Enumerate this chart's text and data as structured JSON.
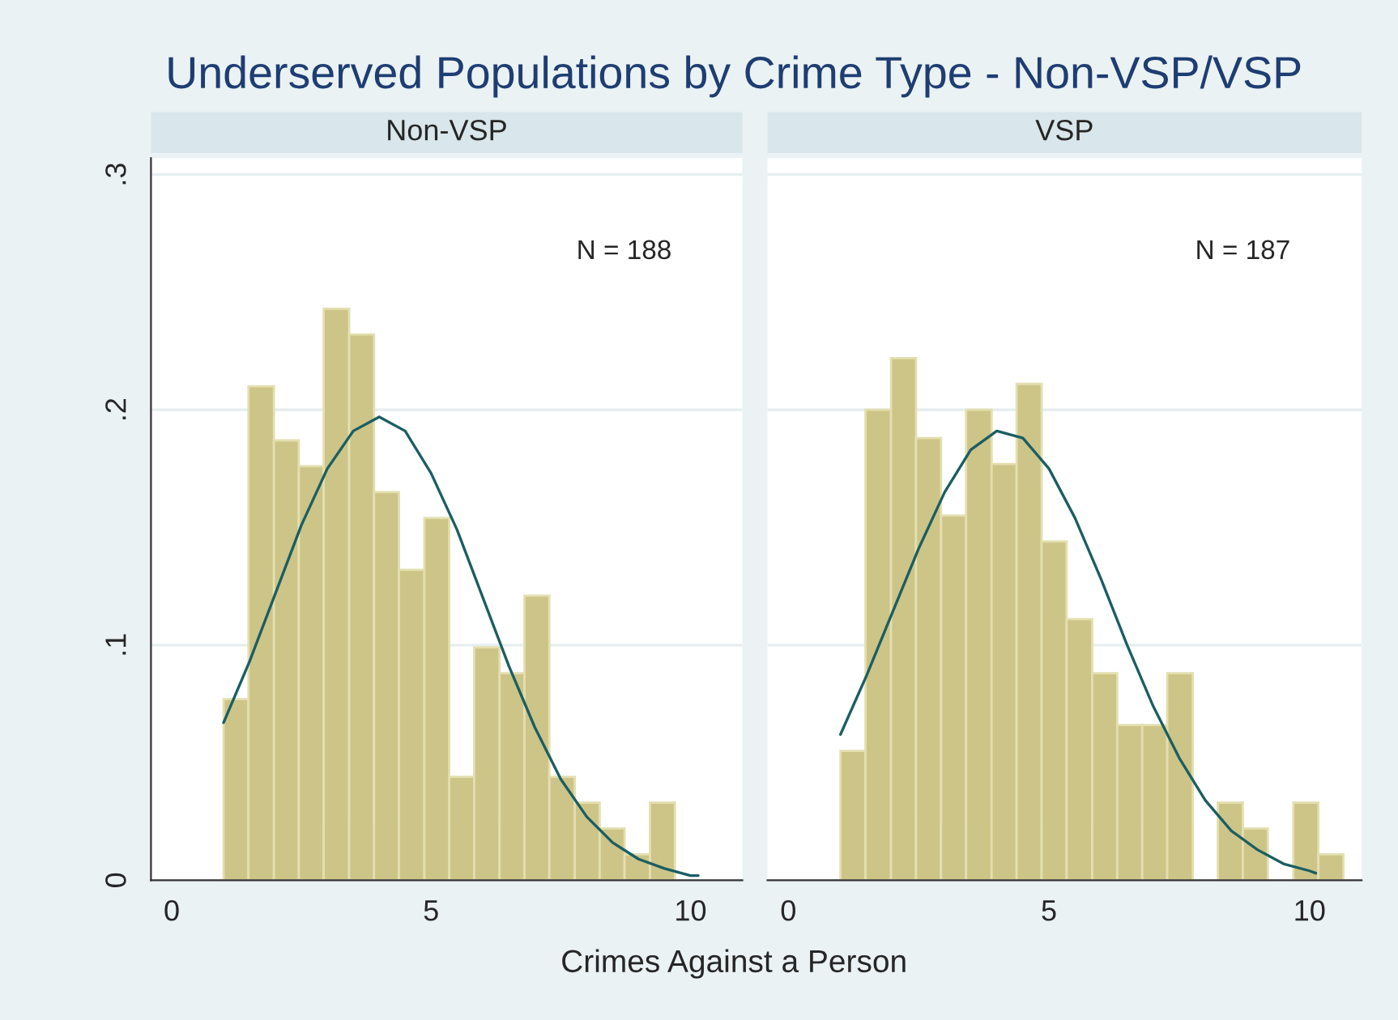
{
  "chart_data": [
    {
      "type": "histogram",
      "title": "Underserved Populations by Crime Type - Non-VSP/VSP",
      "subtitle": "Non-VSP",
      "xlabel": "Crimes Against a Person",
      "annotations": [
        "N = 188"
      ],
      "series": [
        {
          "type": "histogram",
          "color": "#cdc487",
          "bins": [
            1,
            1.48,
            1.97,
            2.45,
            2.93,
            3.42,
            3.9,
            4.38,
            4.87,
            5.35,
            5.83,
            6.32,
            6.8,
            7.28,
            7.77,
            8.25,
            8.73,
            9.22,
            9.7
          ],
          "values": [
            0.077,
            0.21,
            0.187,
            0.176,
            0.243,
            0.232,
            0.165,
            0.132,
            0.154,
            0.044,
            0.099,
            0.088,
            0.121,
            0.044,
            0.033,
            0.022,
            0.011,
            0.033
          ]
        },
        {
          "type": "line",
          "color": "#1a5e63",
          "x": [
            1,
            1.5,
            2,
            2.5,
            3,
            3.5,
            4,
            4.5,
            5,
            5.5,
            6,
            6.5,
            7,
            7.5,
            8,
            8.5,
            9,
            9.5,
            10,
            10.15
          ],
          "values": [
            0.067,
            0.093,
            0.122,
            0.151,
            0.175,
            0.191,
            0.197,
            0.191,
            0.173,
            0.149,
            0.12,
            0.091,
            0.065,
            0.043,
            0.027,
            0.016,
            0.009,
            0.005,
            0.002,
            0.002
          ]
        }
      ],
      "xlim": [
        -0.4,
        11
      ],
      "xticks": [
        0,
        5,
        10
      ],
      "ylim": [
        0,
        0.307
      ],
      "yticks": [
        {
          "value": 0,
          "label": "0"
        },
        {
          "value": 0.1,
          "label": ".1"
        },
        {
          "value": 0.2,
          "label": ".2"
        },
        {
          "value": 0.3,
          "label": ".3"
        }
      ],
      "grid": "y"
    },
    {
      "type": "histogram",
      "subtitle": "VSP",
      "annotations": [
        "N = 187"
      ],
      "series": [
        {
          "type": "histogram",
          "color": "#cdc487",
          "bins": [
            1,
            1.48,
            1.97,
            2.45,
            2.93,
            3.41,
            3.9,
            4.38,
            4.86,
            5.34,
            5.83,
            6.31,
            6.79,
            7.27,
            7.76,
            8.24,
            8.72,
            9.2,
            9.69,
            10.17,
            10.65
          ],
          "values": [
            0.055,
            0.2,
            0.222,
            0.188,
            0.155,
            0.2,
            0.177,
            0.211,
            0.144,
            0.111,
            0.088,
            0.066,
            0.066,
            0.088,
            0,
            0.033,
            0.022,
            0,
            0.033,
            0.011
          ]
        },
        {
          "type": "line",
          "color": "#1a5e63",
          "x": [
            1,
            1.5,
            2,
            2.5,
            3,
            3.5,
            4,
            4.5,
            5,
            5.5,
            6,
            6.5,
            7,
            7.5,
            8,
            8.5,
            9,
            9.5,
            10,
            10.12
          ],
          "values": [
            0.062,
            0.087,
            0.114,
            0.141,
            0.165,
            0.183,
            0.191,
            0.188,
            0.175,
            0.154,
            0.128,
            0.1,
            0.074,
            0.052,
            0.034,
            0.021,
            0.013,
            0.007,
            0.004,
            0.003
          ]
        }
      ],
      "xlim": [
        -0.4,
        11
      ],
      "xticks": [
        0,
        5,
        10
      ],
      "ylim": [
        0,
        0.307
      ],
      "grid": "y",
      "tick_labels": "x",
      "yticks": [
        0,
        0.1,
        0.2,
        0.3
      ]
    }
  ]
}
